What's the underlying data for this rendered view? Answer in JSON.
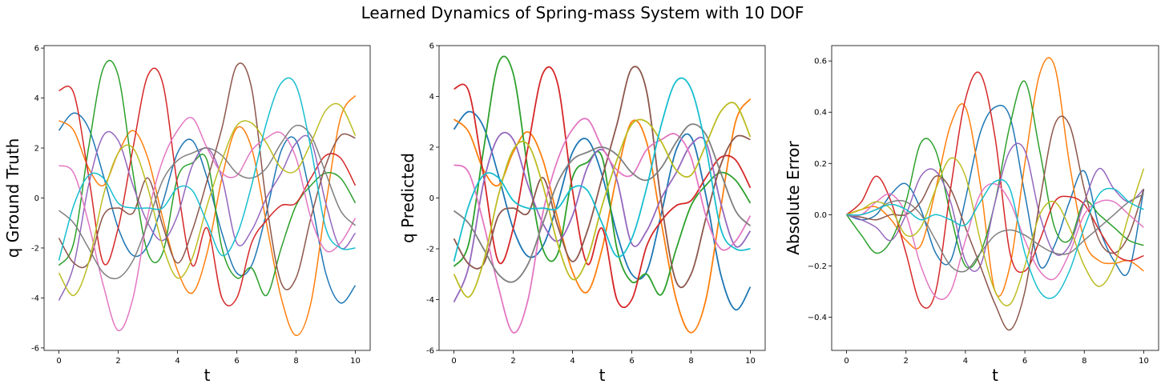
{
  "suptitle": "Learned Dynamics of Spring-mass System with 10 DOF",
  "colors": [
    "#1f77b4",
    "#ff7f0e",
    "#2ca02c",
    "#d62728",
    "#9467bd",
    "#8c564b",
    "#e377c2",
    "#7f7f7f",
    "#bcbd22",
    "#17becf"
  ],
  "chart_data": [
    {
      "type": "line",
      "title": "",
      "xlabel": "t",
      "ylabel": "q Ground Truth",
      "xlim": [
        -0.5,
        10.5
      ],
      "ylim": [
        -6.1,
        6.1
      ],
      "xticks": [
        0,
        2,
        4,
        6,
        8,
        10
      ],
      "yticks": [
        -6,
        -4,
        -2,
        0,
        2,
        4,
        6
      ],
      "grid": false,
      "x": [
        0,
        0.5,
        1,
        1.5,
        2,
        2.5,
        3,
        3.5,
        4,
        4.5,
        5,
        5.5,
        6,
        6.5,
        7,
        7.5,
        8,
        8.5,
        9,
        9.5,
        10
      ],
      "series": [
        {
          "values": [
            2.7,
            3.4,
            2.8,
            0.9,
            -1.2,
            -2.3,
            -1.9,
            -0.2,
            1.8,
            2.3,
            0.8,
            -1.4,
            -3.0,
            -2.7,
            -0.6,
            1.9,
            2.3,
            0.0,
            -3.0,
            -4.2,
            -3.5
          ]
        },
        {
          "values": [
            3.1,
            2.7,
            1.2,
            0.5,
            1.8,
            2.7,
            1.6,
            -0.8,
            -2.9,
            -3.8,
            -2.2,
            0.8,
            2.8,
            2.0,
            -1.0,
            -4.0,
            -5.5,
            -4.2,
            -0.3,
            3.2,
            4.1
          ]
        },
        {
          "values": [
            -2.7,
            -1.8,
            2.0,
            5.2,
            4.9,
            1.0,
            -2.2,
            -2.2,
            0.8,
            1.4,
            1.5,
            -2.0,
            -3.2,
            -2.8,
            -3.9,
            -2.0,
            -0.3,
            0.5,
            1.0,
            0.8,
            -0.2
          ]
        },
        {
          "values": [
            4.3,
            4.2,
            0.9,
            -2.6,
            -1.2,
            2.0,
            4.9,
            4.6,
            0.5,
            -2.7,
            -1.2,
            -4.0,
            -4.0,
            -1.8,
            -0.9,
            -0.3,
            -0.2,
            0.8,
            1.7,
            1.6,
            0.5
          ]
        },
        {
          "values": [
            -4.1,
            -2.7,
            0.5,
            2.5,
            2.3,
            0.5,
            -1.0,
            -1.7,
            -0.7,
            1.3,
            2.0,
            0.8,
            -1.8,
            -1.3,
            0.0,
            1.0,
            2.2,
            2.3,
            -0.2,
            -2.0,
            -1.4
          ]
        },
        {
          "values": [
            -1.6,
            -2.6,
            -2.6,
            -0.7,
            -0.4,
            -0.6,
            0.8,
            -1.1,
            -2.6,
            -1.3,
            0.7,
            2.8,
            5.3,
            4.4,
            -0.2,
            -3.4,
            -3.2,
            -0.8,
            1.3,
            2.5,
            2.4
          ]
        },
        {
          "values": [
            1.3,
            1.0,
            -1.0,
            -3.5,
            -5.3,
            -4.0,
            -0.7,
            1.5,
            2.7,
            3.2,
            2.0,
            1.0,
            0.9,
            1.9,
            2.4,
            2.6,
            1.6,
            -0.8,
            -2.1,
            -1.8,
            -0.8
          ]
        },
        {
          "values": [
            -0.5,
            -1.0,
            -2.0,
            -3.0,
            -3.2,
            -2.5,
            -1.0,
            0.7,
            1.5,
            1.8,
            2.0,
            1.7,
            1.0,
            0.8,
            1.2,
            2.2,
            2.9,
            2.5,
            1.0,
            -0.5,
            -1.1
          ]
        },
        {
          "values": [
            -3.0,
            -3.9,
            -2.6,
            0.1,
            1.8,
            2.0,
            0.4,
            -1.9,
            -3.2,
            -2.4,
            -0.3,
            1.5,
            2.9,
            3.0,
            2.2,
            1.2,
            1.1,
            2.2,
            3.5,
            3.7,
            2.5
          ]
        },
        {
          "values": [
            -2.5,
            -0.3,
            0.9,
            0.8,
            -0.2,
            -0.4,
            -0.4,
            -0.4,
            0.4,
            0.3,
            -1.0,
            -2.3,
            -1.5,
            0.5,
            3.0,
            4.6,
            4.5,
            2.0,
            -1.2,
            -2.0,
            -2.0
          ]
        }
      ]
    },
    {
      "type": "line",
      "title": "",
      "xlabel": "t",
      "ylabel": "q Predicted",
      "xlim": [
        -0.5,
        10.5
      ],
      "ylim": [
        -6,
        6
      ],
      "xticks": [
        0,
        2,
        4,
        6,
        8,
        10
      ],
      "yticks": [
        -6,
        -4,
        -2,
        0,
        2,
        4,
        6
      ],
      "grid": false,
      "x": [
        0,
        0.5,
        1,
        1.5,
        2,
        2.5,
        3,
        3.5,
        4,
        4.5,
        5,
        5.5,
        6,
        6.5,
        7,
        7.5,
        8,
        8.5,
        9,
        9.5,
        10
      ],
      "series": [
        {
          "values": [
            2.7,
            3.4,
            2.8,
            0.9,
            -1.2,
            -2.3,
            -1.9,
            -0.2,
            1.8,
            2.3,
            0.9,
            -1.4,
            -3.0,
            -2.9,
            -0.6,
            1.9,
            2.4,
            0.1,
            -3.0,
            -4.4,
            -3.5
          ]
        },
        {
          "values": [
            3.1,
            2.6,
            1.1,
            0.5,
            1.8,
            2.6,
            1.5,
            -0.8,
            -2.9,
            -3.7,
            -2.0,
            0.9,
            3.0,
            2.2,
            -1.0,
            -4.0,
            -5.3,
            -4.0,
            -0.4,
            3.0,
            3.9
          ]
        },
        {
          "values": [
            -2.7,
            -1.8,
            1.9,
            5.3,
            4.9,
            1.1,
            -2.0,
            -2.2,
            0.8,
            1.4,
            1.6,
            -2.0,
            -3.3,
            -3.0,
            -3.8,
            -2.0,
            -0.3,
            0.5,
            1.0,
            0.7,
            -0.2
          ]
        },
        {
          "values": [
            4.3,
            4.2,
            0.9,
            -2.5,
            -1.2,
            2.0,
            4.9,
            4.5,
            0.3,
            -2.6,
            -1.2,
            -4.0,
            -4.0,
            -1.9,
            -0.9,
            -0.3,
            -0.1,
            0.8,
            1.6,
            1.5,
            0.4
          ]
        },
        {
          "values": [
            -4.1,
            -2.7,
            0.6,
            2.4,
            2.3,
            0.5,
            -1.0,
            -1.7,
            -0.7,
            1.2,
            1.9,
            0.7,
            -1.8,
            -1.3,
            0.0,
            1.0,
            2.1,
            2.2,
            -0.2,
            -1.9,
            -1.3
          ]
        },
        {
          "values": [
            -1.6,
            -2.6,
            -2.6,
            -0.7,
            -0.4,
            -0.6,
            0.8,
            -1.1,
            -2.5,
            -1.3,
            0.8,
            2.9,
            5.1,
            4.2,
            -0.2,
            -3.3,
            -3.0,
            -0.8,
            1.3,
            2.4,
            2.3
          ]
        },
        {
          "values": [
            1.3,
            1.0,
            -1.0,
            -3.5,
            -5.3,
            -4.0,
            -0.6,
            1.5,
            2.7,
            3.1,
            2.0,
            1.1,
            0.9,
            1.9,
            2.3,
            2.5,
            1.6,
            -0.7,
            -2.0,
            -1.7,
            -0.7
          ]
        },
        {
          "values": [
            -0.5,
            -1.0,
            -2.0,
            -3.0,
            -3.3,
            -2.6,
            -1.0,
            0.6,
            1.5,
            1.8,
            2.0,
            1.7,
            1.0,
            0.7,
            1.2,
            2.2,
            2.9,
            2.5,
            1.0,
            -0.5,
            -1.1
          ]
        },
        {
          "values": [
            -3.0,
            -3.9,
            -2.5,
            0.1,
            1.9,
            2.1,
            0.5,
            -1.8,
            -3.2,
            -2.4,
            -0.3,
            1.5,
            2.9,
            3.0,
            2.2,
            1.1,
            0.9,
            2.1,
            3.4,
            3.7,
            2.4
          ]
        },
        {
          "values": [
            -2.5,
            -0.3,
            0.9,
            0.8,
            -0.1,
            -0.4,
            -0.4,
            -0.4,
            0.4,
            0.3,
            -1.0,
            -2.3,
            -1.6,
            0.4,
            2.9,
            4.6,
            4.3,
            2.0,
            -1.2,
            -2.0,
            -2.0
          ]
        }
      ]
    },
    {
      "type": "line",
      "title": "",
      "xlabel": "t",
      "ylabel": "Absolute Error",
      "xlim": [
        -0.5,
        10.5
      ],
      "ylim": [
        -0.53,
        0.66
      ],
      "xticks": [
        0,
        2,
        4,
        6,
        8,
        10
      ],
      "yticks": [
        -0.4,
        -0.2,
        0.0,
        0.2,
        0.4,
        0.6
      ],
      "ytick_labels": [
        "−0.4",
        "−0.2",
        "0.0",
        "0.2",
        "0.4",
        "0.6"
      ],
      "grid": false,
      "x": [
        0,
        0.5,
        1,
        1.5,
        2,
        2.5,
        3,
        3.5,
        4,
        4.5,
        5,
        5.5,
        6,
        6.5,
        7,
        7.5,
        8,
        8.5,
        9,
        9.5,
        10
      ],
      "series": [
        {
          "values": [
            0.0,
            -0.02,
            0.0,
            0.08,
            0.12,
            0.02,
            -0.15,
            -0.18,
            0.06,
            0.32,
            0.42,
            0.38,
            0.08,
            -0.2,
            -0.12,
            0.05,
            0.17,
            -0.05,
            -0.18,
            -0.22,
            0.1
          ]
        },
        {
          "values": [
            0.0,
            0.02,
            0.03,
            -0.02,
            -0.1,
            -0.12,
            0.1,
            0.35,
            0.42,
            0.12,
            -0.3,
            -0.2,
            0.2,
            0.55,
            0.58,
            0.2,
            -0.1,
            -0.18,
            -0.19,
            -0.18,
            -0.22
          ]
        },
        {
          "values": [
            0.0,
            -0.08,
            -0.15,
            -0.1,
            0.05,
            0.28,
            0.25,
            0.0,
            -0.2,
            -0.15,
            0.05,
            0.35,
            0.52,
            0.25,
            -0.05,
            -0.1,
            0.05,
            0.0,
            -0.05,
            -0.1,
            -0.12
          ]
        },
        {
          "values": [
            0.0,
            0.05,
            0.15,
            0.05,
            -0.15,
            -0.35,
            -0.3,
            0.1,
            0.45,
            0.55,
            0.3,
            -0.15,
            -0.22,
            -0.1,
            0.05,
            0.07,
            0.04,
            -0.06,
            -0.15,
            -0.18,
            -0.16
          ]
        },
        {
          "values": [
            0.0,
            -0.02,
            -0.05,
            -0.1,
            0.0,
            0.15,
            0.17,
            0.05,
            -0.18,
            -0.2,
            0.05,
            0.25,
            0.25,
            0.0,
            -0.15,
            -0.12,
            0.05,
            0.18,
            0.1,
            0.05,
            0.1
          ]
        },
        {
          "values": [
            0.0,
            -0.01,
            -0.02,
            0.0,
            0.0,
            0.05,
            0.15,
            0.1,
            -0.05,
            -0.2,
            -0.35,
            -0.45,
            -0.3,
            0.05,
            0.35,
            0.35,
            0.1,
            -0.1,
            -0.15,
            -0.08,
            0.1
          ]
        },
        {
          "values": [
            0.0,
            0.0,
            0.05,
            0.08,
            0.0,
            -0.2,
            -0.32,
            -0.3,
            -0.1,
            0.08,
            0.12,
            0.05,
            -0.1,
            -0.22,
            -0.25,
            -0.15,
            0.0,
            0.05,
            0.05,
            0.0,
            -0.05
          ]
        },
        {
          "values": [
            0.0,
            0.0,
            0.02,
            0.05,
            0.05,
            0.0,
            -0.1,
            -0.2,
            -0.22,
            -0.15,
            -0.08,
            -0.06,
            -0.08,
            -0.12,
            -0.15,
            -0.15,
            -0.1,
            -0.05,
            0.0,
            0.05,
            0.08
          ]
        },
        {
          "values": [
            0.0,
            0.02,
            0.05,
            0.02,
            -0.08,
            -0.05,
            0.1,
            0.22,
            0.15,
            -0.1,
            -0.3,
            -0.35,
            -0.2,
            0.0,
            0.05,
            -0.05,
            -0.2,
            -0.28,
            -0.2,
            0.0,
            0.18
          ]
        },
        {
          "values": [
            0.0,
            0.0,
            0.02,
            0.04,
            0.02,
            -0.02,
            0.0,
            -0.02,
            -0.04,
            0.05,
            0.13,
            0.1,
            -0.15,
            -0.3,
            -0.32,
            -0.22,
            -0.05,
            0.08,
            0.1,
            0.05,
            0.02
          ]
        }
      ]
    }
  ]
}
